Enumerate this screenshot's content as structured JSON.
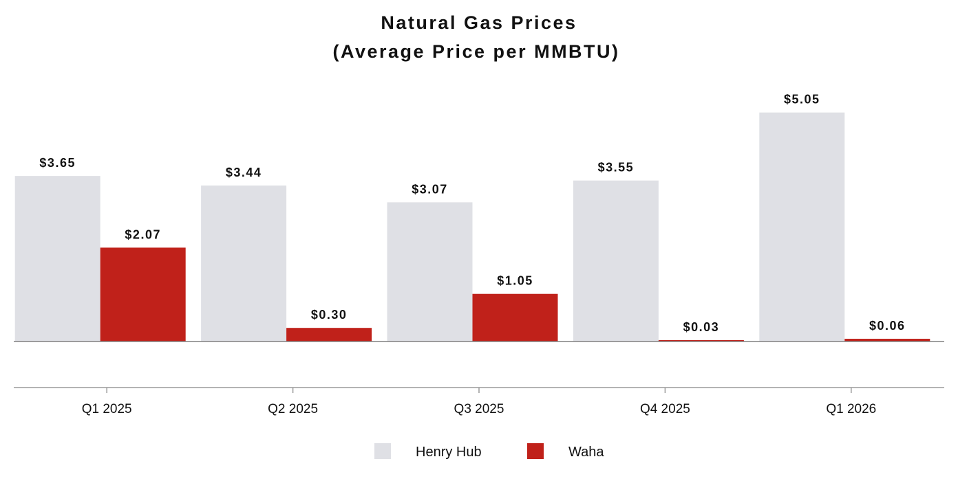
{
  "chart_data": {
    "type": "bar",
    "title": "Natural Gas Prices",
    "subtitle": "(Average Price per MMBTU)",
    "categories": [
      "Q1 2025",
      "Q2 2025",
      "Q3 2025",
      "Q4 2025",
      "Q1 2026"
    ],
    "series": [
      {
        "name": "Henry Hub",
        "values": [
          3.65,
          3.44,
          3.07,
          3.55,
          5.05
        ],
        "labels": [
          "$3.65",
          "$3.44",
          "$3.07",
          "$3.55",
          "$5.05"
        ],
        "color": "#dfe0e5"
      },
      {
        "name": "Waha",
        "values": [
          2.07,
          0.3,
          1.05,
          0.03,
          0.06
        ],
        "labels": [
          "$2.07",
          "$0.30",
          "$1.05",
          "$0.03",
          "$0.06"
        ],
        "color": "#c0211a"
      }
    ],
    "ylim": [
      -1,
      5.5
    ],
    "legend_position": "bottom-center",
    "grid": false
  }
}
